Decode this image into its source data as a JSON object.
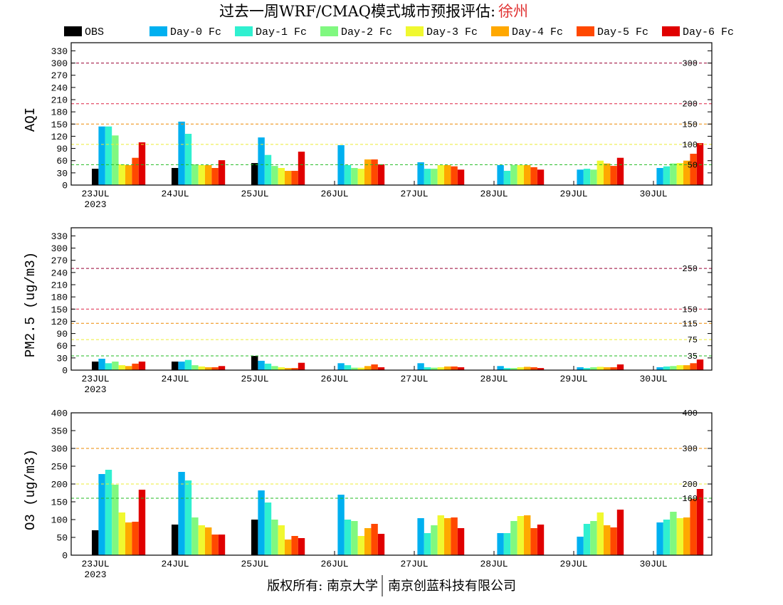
{
  "title": {
    "main": "过去一周WRF/CMAQ模式城市预报评估:",
    "city": "徐州",
    "city_color": "#e03030"
  },
  "legend": [
    {
      "label": "OBS",
      "color": "#000000"
    },
    {
      "label": "Day-0 Fc",
      "color": "#00b0f0"
    },
    {
      "label": "Day-1 Fc",
      "color": "#30f0d0"
    },
    {
      "label": "Day-2 Fc",
      "color": "#80f880"
    },
    {
      "label": "Day-3 Fc",
      "color": "#f0f830"
    },
    {
      "label": "Day-4 Fc",
      "color": "#ffa800"
    },
    {
      "label": "Day-5 Fc",
      "color": "#ff4800"
    },
    {
      "label": "Day-6 Fc",
      "color": "#e00000"
    }
  ],
  "chart_data": [
    {
      "type": "bar",
      "ylabel": "AQI",
      "ylim": [
        0,
        350
      ],
      "yticks": [
        0,
        30,
        60,
        90,
        120,
        150,
        180,
        210,
        240,
        270,
        300,
        330
      ],
      "categories": [
        "23JUL",
        "24JUL",
        "25JUL",
        "26JUL",
        "27JUL",
        "28JUL",
        "29JUL",
        "30JUL"
      ],
      "year_label": "2023",
      "grid": false,
      "legend_placement": "top",
      "series": [
        {
          "name": "OBS",
          "values": [
            40,
            42,
            54,
            null,
            null,
            null,
            null,
            null
          ]
        },
        {
          "name": "Day-0 Fc",
          "values": [
            144,
            156,
            117,
            98,
            56,
            49,
            38,
            42
          ]
        },
        {
          "name": "Day-1 Fc",
          "values": [
            144,
            126,
            74,
            49,
            40,
            35,
            40,
            46
          ]
        },
        {
          "name": "Day-2 Fc",
          "values": [
            122,
            51,
            47,
            42,
            40,
            49,
            38,
            53
          ]
        },
        {
          "name": "Day-3 Fc",
          "values": [
            51,
            49,
            42,
            40,
            49,
            49,
            60,
            54
          ]
        },
        {
          "name": "Day-4 Fc",
          "values": [
            49,
            49,
            35,
            63,
            49,
            49,
            53,
            60
          ]
        },
        {
          "name": "Day-5 Fc",
          "values": [
            67,
            42,
            35,
            63,
            46,
            44,
            47,
            77
          ]
        },
        {
          "name": "Day-6 Fc",
          "values": [
            105,
            61,
            82,
            51,
            38,
            38,
            67,
            103
          ]
        }
      ],
      "ref_lines": [
        {
          "value": 50,
          "color": "#22bb22"
        },
        {
          "value": 100,
          "color": "#eeee33"
        },
        {
          "value": 150,
          "color": "#ee8800"
        },
        {
          "value": 200,
          "color": "#dd2244"
        },
        {
          "value": 300,
          "color": "#990033"
        }
      ]
    },
    {
      "type": "bar",
      "ylabel": "PM2.5 (ug/m3)",
      "ylim": [
        0,
        350
      ],
      "yticks": [
        0,
        30,
        60,
        90,
        120,
        150,
        180,
        210,
        240,
        270,
        300,
        330
      ],
      "categories": [
        "23JUL",
        "24JUL",
        "25JUL",
        "26JUL",
        "27JUL",
        "28JUL",
        "29JUL",
        "30JUL"
      ],
      "year_label": "2023",
      "grid": false,
      "legend_placement": "top",
      "series": [
        {
          "name": "OBS",
          "values": [
            21,
            21,
            35,
            null,
            null,
            null,
            null,
            null
          ]
        },
        {
          "name": "Day-0 Fc",
          "values": [
            28,
            21,
            23,
            17,
            17,
            10,
            7,
            7
          ]
        },
        {
          "name": "Day-1 Fc",
          "values": [
            17,
            25,
            16,
            12,
            7,
            5,
            5,
            9
          ]
        },
        {
          "name": "Day-2 Fc",
          "values": [
            21,
            12,
            10,
            6,
            6,
            5,
            7,
            10
          ]
        },
        {
          "name": "Day-3 Fc",
          "values": [
            12,
            9,
            7,
            6,
            7,
            7,
            8,
            12
          ]
        },
        {
          "name": "Day-4 Fc",
          "values": [
            10,
            7,
            5,
            10,
            9,
            8,
            7,
            12
          ]
        },
        {
          "name": "Day-5 Fc",
          "values": [
            16,
            7,
            5,
            14,
            9,
            7,
            7,
            17
          ]
        },
        {
          "name": "Day-6 Fc",
          "values": [
            21,
            10,
            18,
            7,
            7,
            5,
            14,
            26
          ]
        }
      ],
      "ref_lines": [
        {
          "value": 35,
          "color": "#22bb22"
        },
        {
          "value": 75,
          "color": "#eeee33"
        },
        {
          "value": 115,
          "color": "#ee8800"
        },
        {
          "value": 150,
          "color": "#dd2244"
        },
        {
          "value": 250,
          "color": "#990033"
        }
      ]
    },
    {
      "type": "bar",
      "ylabel": "O3 (ug/m3)",
      "ylim": [
        0,
        400
      ],
      "yticks": [
        0,
        50,
        100,
        150,
        200,
        250,
        300,
        350,
        400
      ],
      "categories": [
        "23JUL",
        "24JUL",
        "25JUL",
        "26JUL",
        "27JUL",
        "28JUL",
        "29JUL",
        "30JUL"
      ],
      "year_label": "2023",
      "grid": false,
      "legend_placement": "top",
      "series": [
        {
          "name": "OBS",
          "values": [
            70,
            86,
            100,
            null,
            null,
            null,
            null,
            null
          ]
        },
        {
          "name": "Day-0 Fc",
          "values": [
            228,
            234,
            182,
            170,
            104,
            62,
            52,
            92
          ]
        },
        {
          "name": "Day-1 Fc",
          "values": [
            240,
            210,
            148,
            100,
            62,
            62,
            88,
            100
          ]
        },
        {
          "name": "Day-2 Fc",
          "values": [
            198,
            106,
            100,
            96,
            84,
            96,
            96,
            122
          ]
        },
        {
          "name": "Day-3 Fc",
          "values": [
            120,
            84,
            84,
            54,
            112,
            110,
            120,
            104
          ]
        },
        {
          "name": "Day-4 Fc",
          "values": [
            92,
            78,
            44,
            76,
            104,
            112,
            84,
            106
          ]
        },
        {
          "name": "Day-5 Fc",
          "values": [
            94,
            58,
            54,
            88,
            106,
            76,
            78,
            158
          ]
        },
        {
          "name": "Day-6 Fc",
          "values": [
            184,
            58,
            48,
            60,
            76,
            86,
            128,
            186
          ]
        }
      ],
      "ref_lines": [
        {
          "value": 160,
          "color": "#22bb22"
        },
        {
          "value": 200,
          "color": "#eeee33"
        },
        {
          "value": 300,
          "color": "#ee8800"
        },
        {
          "value": 400,
          "color": "#990033"
        }
      ]
    }
  ],
  "footer": {
    "copyright": "版权所有: 南京大学",
    "company": "南京创蓝科技有限公司"
  }
}
